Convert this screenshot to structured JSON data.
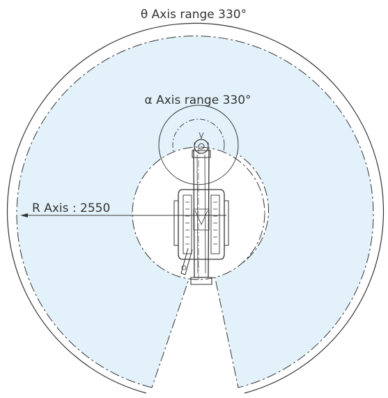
{
  "diagram": {
    "theta_label": "θ Axis range 330°",
    "alpha_label": "α Axis range 330°",
    "r_label": "R Axis : 2550"
  },
  "colors": {
    "work_area_fill": "#e3f2fa",
    "inner_area_fill": "#ffffff",
    "line": "#333333",
    "label": "#333333"
  }
}
